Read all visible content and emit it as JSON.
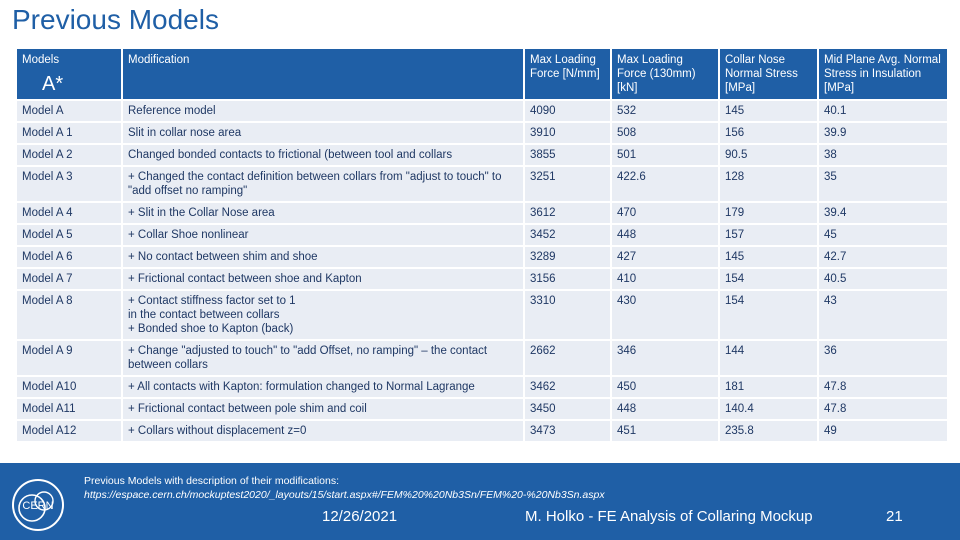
{
  "slide": {
    "title": "Previous Models",
    "models_header": "Models",
    "models_sub": "A*"
  },
  "table": {
    "headers": [
      "Modification",
      "Max Loading Force [N/mm]",
      "Max Loading Force (130mm) [kN]",
      "Collar Nose Normal Stress [MPa]",
      "Mid Plane Avg. Normal Stress in Insulation [MPa]"
    ],
    "rows": [
      [
        "Model A",
        "Reference model",
        "4090",
        "532",
        "145",
        "40.1"
      ],
      [
        "Model A 1",
        "Slit in collar nose area",
        "3910",
        "508",
        "156",
        "39.9"
      ],
      [
        "Model A 2",
        "Changed bonded contacts to frictional (between tool and collars",
        "3855",
        "501",
        "90.5",
        "38"
      ],
      [
        "Model A 3",
        "+ Changed the contact definition between collars from \"adjust to touch\" to \"add offset no ramping\"",
        "3251",
        "422.6",
        "128",
        "35"
      ],
      [
        "Model A 4",
        "+ Slit in the Collar Nose area",
        "3612",
        "470",
        "179",
        "39.4"
      ],
      [
        "Model A 5",
        "+ Collar Shoe nonlinear",
        "3452",
        "448",
        "157",
        "45"
      ],
      [
        "Model A 6",
        "+ No contact between shim and shoe",
        "3289",
        "427",
        "145",
        "42.7"
      ],
      [
        "Model A 7",
        "+ Frictional contact between shoe and Kapton",
        "3156",
        "410",
        "154",
        "40.5"
      ],
      [
        "Model A 8",
        "+ Contact stiffness factor set to 1\nin the contact between collars\n+ Bonded shoe to Kapton (back)",
        "3310",
        "430",
        "154",
        "43"
      ],
      [
        "Model A 9",
        "+ Change \"adjusted to touch\" to \"add Offset, no ramping\" – the contact between collars",
        "2662",
        "346",
        "144",
        "36"
      ],
      [
        "Model A10",
        "+ All contacts with Kapton: formulation changed to Normal Lagrange",
        "3462",
        "450",
        "181",
        "47.8"
      ],
      [
        "Model A11",
        "+ Frictional contact between pole shim and coil",
        "3450",
        "448",
        "140.4",
        "47.8"
      ],
      [
        "Model A12",
        "+ Collars without displacement z=0",
        "3473",
        "451",
        "235.8",
        "49"
      ]
    ]
  },
  "footer": {
    "description": "Previous Models with description of their modifications:",
    "url": "https://espace.cern.ch/mockuptest2020/_layouts/15/start.aspx#/FEM%20%20Nb3Sn/FEM%20-%20Nb3Sn.aspx",
    "date": "12/26/2021",
    "author": "M. Holko - FE Analysis of Collaring Mockup",
    "page": "21",
    "logo_text": "CERN"
  },
  "colors": {
    "accent": "#1f5fa6",
    "row_bg": "#e9edf4",
    "cell_text": "#1f3864"
  }
}
